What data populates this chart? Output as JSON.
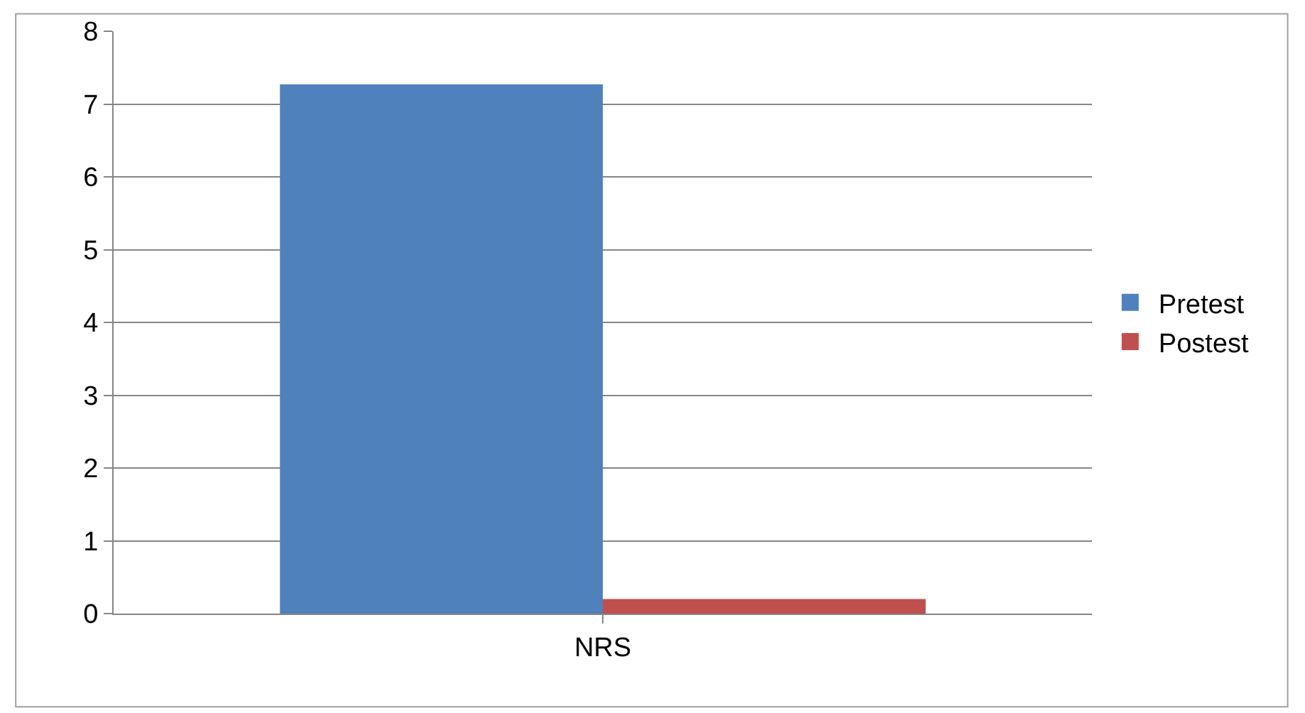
{
  "chart_data": {
    "type": "bar",
    "categories": [
      "NRS"
    ],
    "series": [
      {
        "name": "Pretest",
        "color": "#4f81bd",
        "values": [
          7.27
        ]
      },
      {
        "name": "Postest",
        "color": "#c0504d",
        "values": [
          0.2
        ]
      }
    ],
    "ylim": [
      0,
      8
    ],
    "yticks": [
      0,
      1,
      2,
      3,
      4,
      5,
      6,
      7,
      8
    ],
    "grid": "y",
    "legend": "right"
  }
}
